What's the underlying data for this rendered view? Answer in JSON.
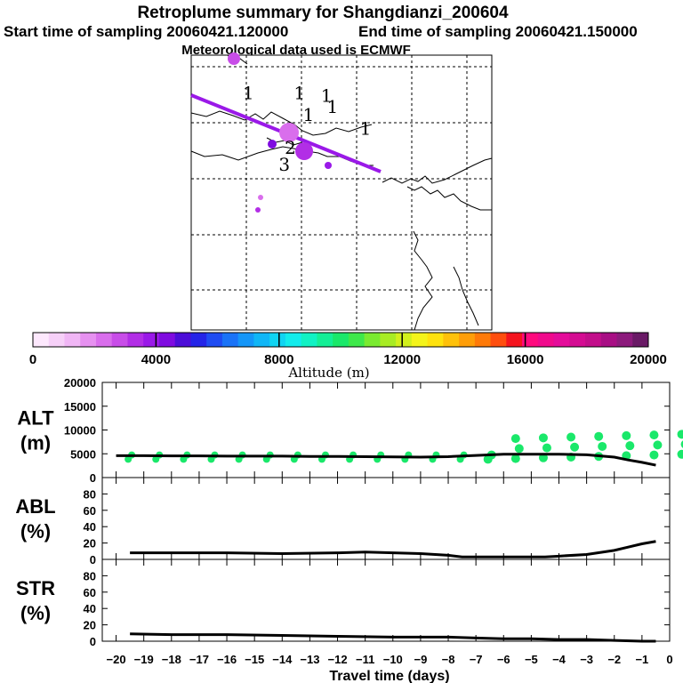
{
  "header": {
    "title": "Retroplume summary for Shangdianzi_200604",
    "start_label": "Start time of sampling 20060421.120000",
    "end_label": "End time of sampling 20060421.150000",
    "met_label": "Meteorological data used is ECMWF"
  },
  "colorbar": {
    "label": "Altitude (m)",
    "ticks": [
      "0",
      "4000",
      "8000",
      "12000",
      "16000",
      "20000"
    ],
    "colors": [
      "#fde8fd",
      "#f6d0f8",
      "#f0b6f5",
      "#e691f0",
      "#d96eec",
      "#c84de8",
      "#b22ee6",
      "#9a19e8",
      "#7f0be0",
      "#4c0dd8",
      "#2424e8",
      "#1f4cf2",
      "#1a73f7",
      "#1596f8",
      "#10b6f6",
      "#10d4f2",
      "#12ecec",
      "#10f2c4",
      "#14ef96",
      "#1ae86a",
      "#3ee84a",
      "#7aea30",
      "#a8ec24",
      "#d2f01c",
      "#f4f41a",
      "#ffe20e",
      "#ffc10a",
      "#ff9e08",
      "#ff7a08",
      "#ff4e0e",
      "#f4141e",
      "#ff0a7e",
      "#f00a8c",
      "#e40c9a",
      "#d40c92",
      "#c20e8a",
      "#a80e84",
      "#8c1a7c",
      "#6a1a66"
    ]
  },
  "map": {
    "markers": [
      {
        "label": "1",
        "x": 0.19,
        "y": 0.16
      },
      {
        "label": "1",
        "x": 0.36,
        "y": 0.16
      },
      {
        "label": "1",
        "x": 0.45,
        "y": 0.17
      },
      {
        "label": "1",
        "x": 0.47,
        "y": 0.21
      },
      {
        "label": "1",
        "x": 0.39,
        "y": 0.24
      },
      {
        "label": "1",
        "x": 0.58,
        "y": 0.29
      },
      {
        "label": "2",
        "x": 0.33,
        "y": 0.36
      },
      {
        "label": "3",
        "x": 0.31,
        "y": 0.42
      }
    ]
  },
  "chart_data": [
    {
      "type": "scatter",
      "name": "ALT",
      "ylabel": "ALT (m)",
      "ylabel_lines": [
        "ALT",
        "(m)"
      ],
      "ylim": [
        0,
        20000
      ],
      "yticks": [
        "0",
        "5000",
        "10000",
        "15000",
        "20000"
      ],
      "line": {
        "x": [
          -20,
          -19,
          -18,
          -17,
          -16,
          -15,
          -14,
          -13,
          -12,
          -11,
          -10,
          -9,
          -8,
          -7,
          -6,
          -5,
          -4,
          -3,
          -2,
          -1.5,
          -1,
          -0.5
        ],
        "y": [
          4600,
          4600,
          4550,
          4550,
          4500,
          4500,
          4500,
          4450,
          4450,
          4400,
          4350,
          4300,
          4400,
          4650,
          4900,
          4900,
          4900,
          4800,
          4300,
          3700,
          3200,
          2600
        ]
      },
      "dots_description": "green dots at each day",
      "xlim": [
        -20.5,
        0
      ]
    },
    {
      "type": "line",
      "name": "ABL",
      "ylabel": "ABL (%)",
      "ylabel_lines": [
        "ABL",
        "(%)"
      ],
      "ylim": [
        0,
        100
      ],
      "yticks": [
        "0",
        "20",
        "40",
        "60",
        "80"
      ],
      "x": [
        -19.5,
        -18,
        -16,
        -14,
        -12,
        -11,
        -10,
        -9,
        -8,
        -7.5,
        -7,
        -6,
        -5,
        -4.5,
        -4,
        -3,
        -2,
        -1.5,
        -1,
        -0.5
      ],
      "y": [
        8,
        8,
        8,
        7,
        8,
        9,
        8,
        7,
        5,
        3,
        3,
        3,
        3,
        3,
        4,
        6,
        11,
        15,
        19,
        22
      ],
      "xlim": [
        -20.5,
        0
      ]
    },
    {
      "type": "line",
      "name": "STR",
      "ylabel": "STR (%)",
      "ylabel_lines": [
        "STR",
        "(%)"
      ],
      "ylim": [
        0,
        100
      ],
      "yticks": [
        "0",
        "20",
        "40",
        "60",
        "80"
      ],
      "x": [
        -19.5,
        -18,
        -16,
        -14,
        -12,
        -10,
        -8,
        -7,
        -6,
        -5,
        -4,
        -3,
        -2,
        -1,
        -0.5
      ],
      "y": [
        9,
        8,
        8,
        7,
        6,
        5,
        5,
        4,
        3,
        3,
        2,
        2,
        1,
        0,
        0
      ],
      "xlim": [
        -20.5,
        0
      ],
      "xlabel": "Travel time (days)",
      "xticks": [
        "−20",
        "−19",
        "−18",
        "−17",
        "−16",
        "−15",
        "−14",
        "−13",
        "−12",
        "−11",
        "−10",
        "−9",
        "−8",
        "−7",
        "−6",
        "−5",
        "−4",
        "−3",
        "−2",
        "−1",
        "0"
      ]
    }
  ]
}
